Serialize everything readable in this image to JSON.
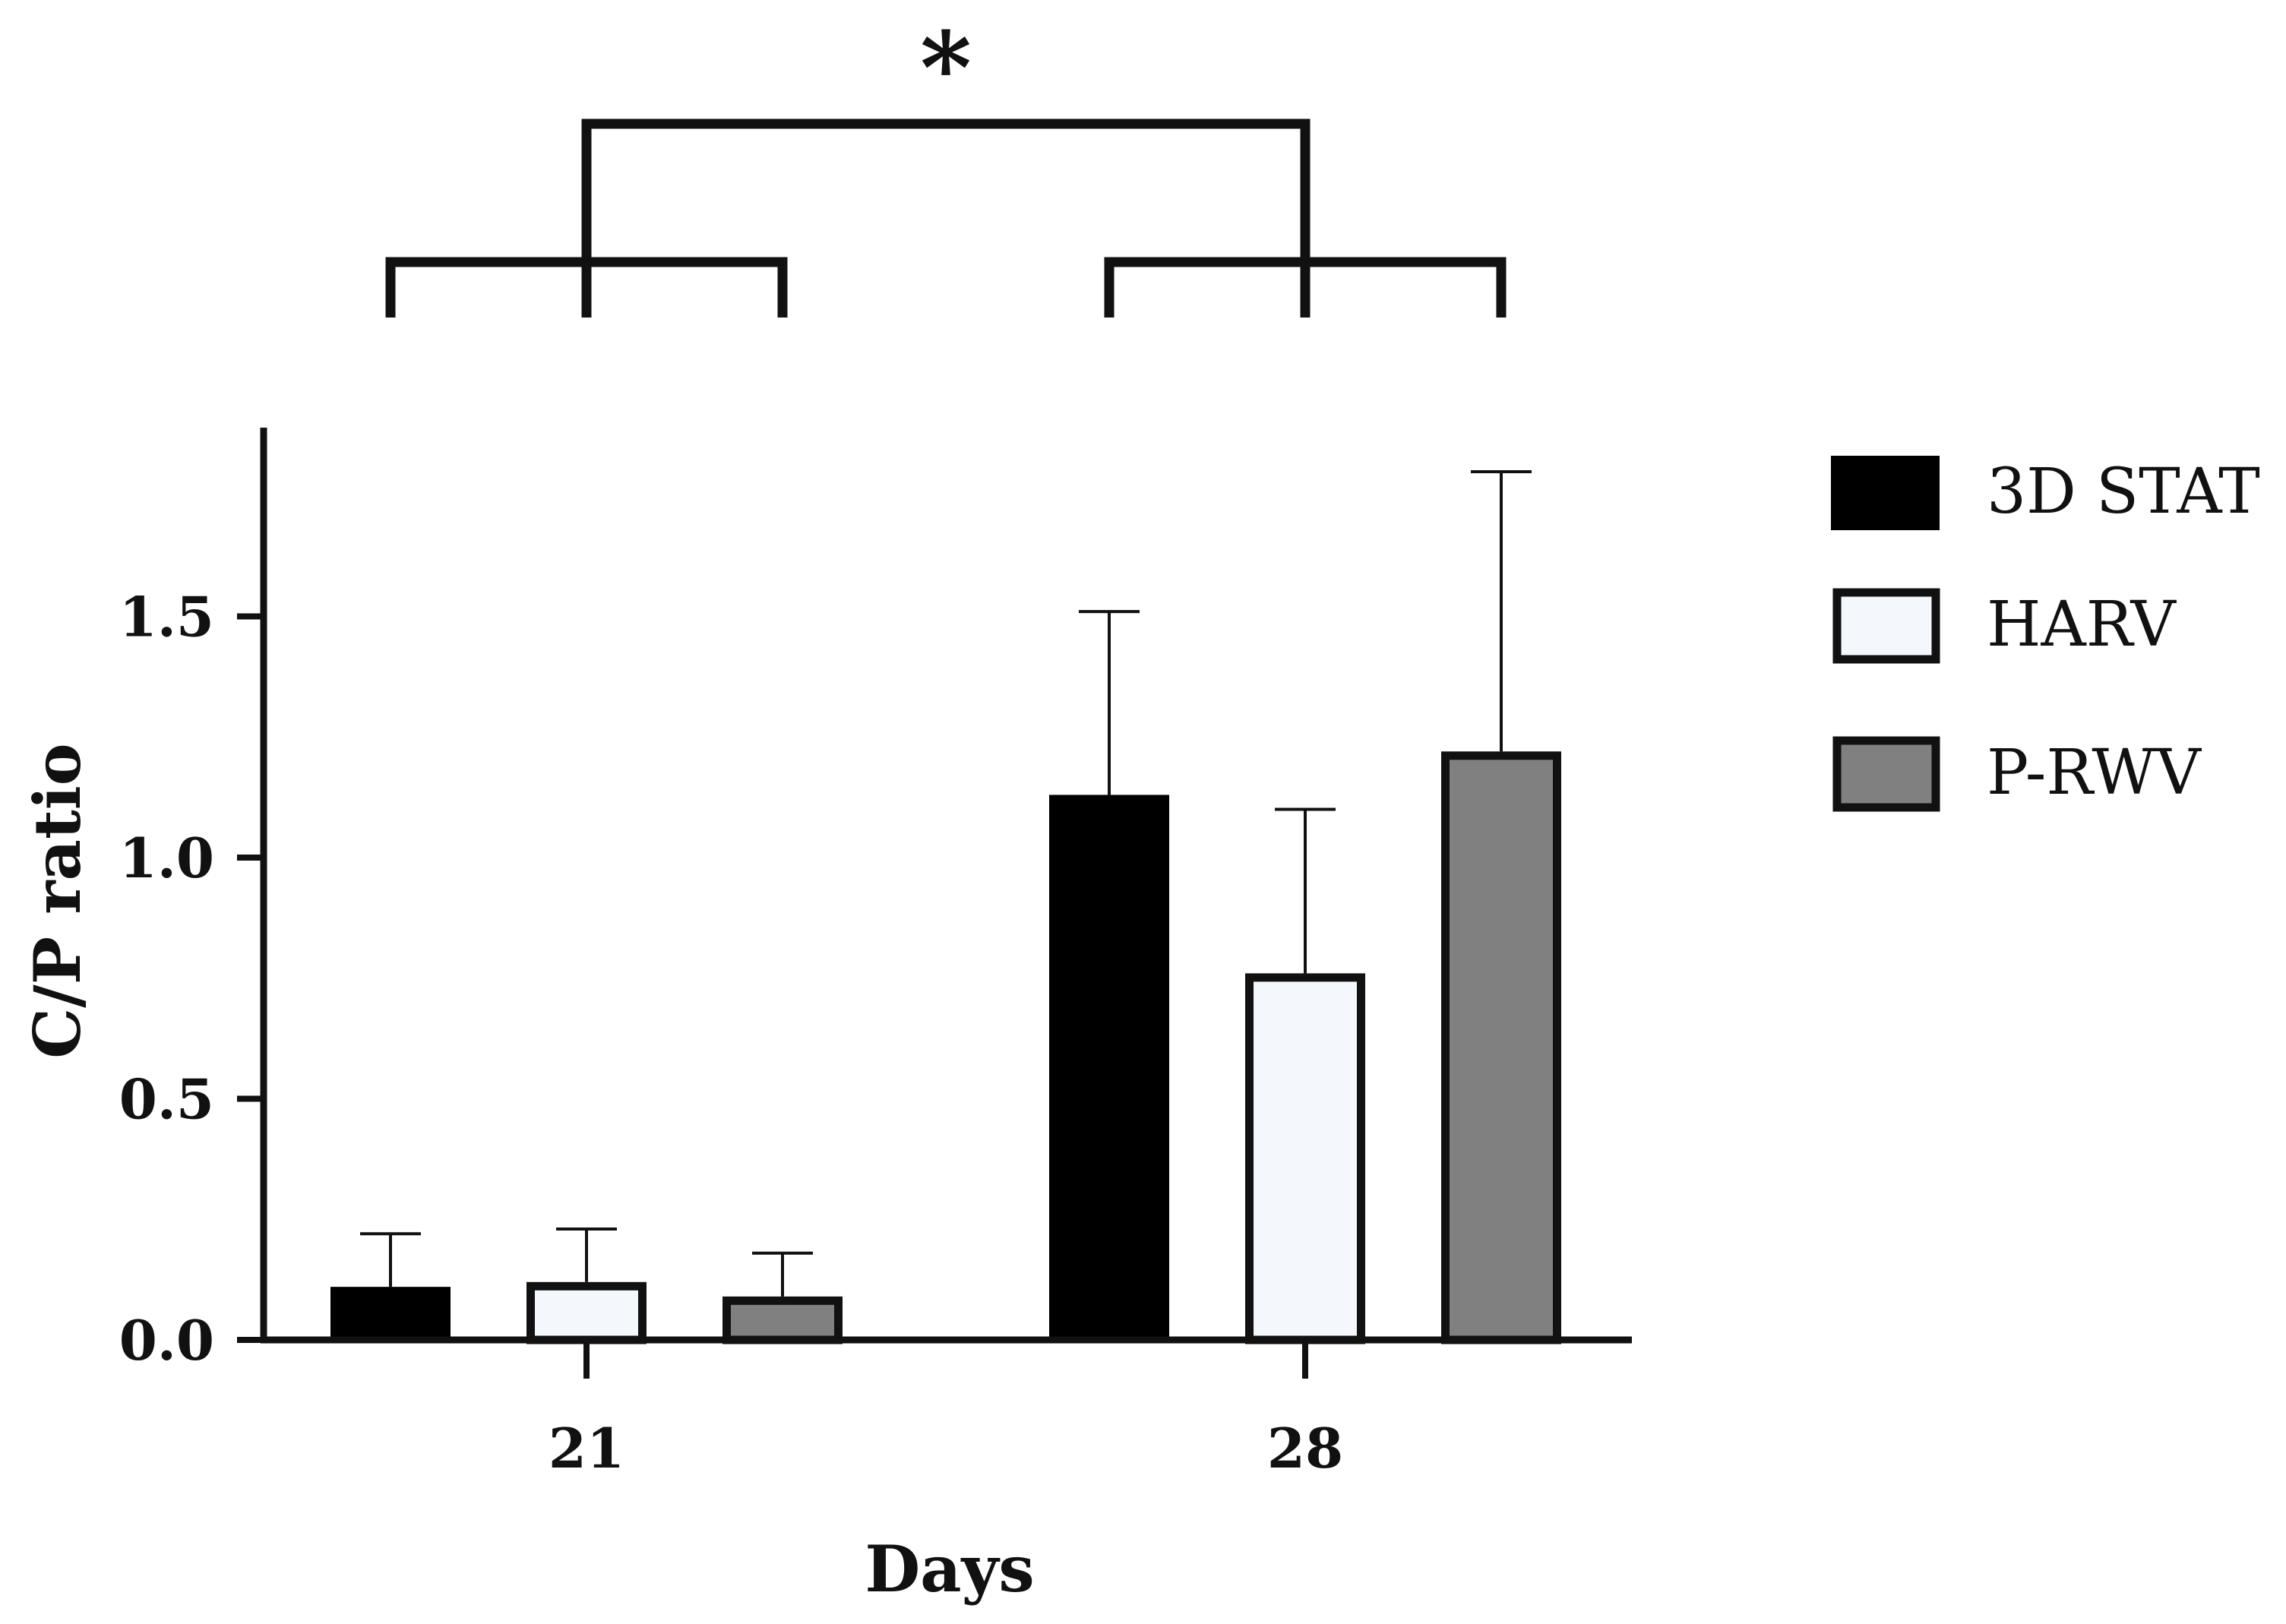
{
  "chart_data": {
    "type": "bar",
    "title": "",
    "xlabel": "Days",
    "ylabel": "C/P ratio",
    "categories": [
      "21",
      "28"
    ],
    "ylim": [
      0,
      1.9
    ],
    "yticks": [
      {
        "value": 0.0,
        "label": "0.0"
      },
      {
        "value": 0.5,
        "label": "0.5"
      },
      {
        "value": 1.0,
        "label": "1.0"
      },
      {
        "value": 1.5,
        "label": "1.5"
      }
    ],
    "series": [
      {
        "name": "3D STAT",
        "values": [
          0.11,
          1.13
        ],
        "error_upper": [
          0.22,
          1.51
        ],
        "fill": "#000000"
      },
      {
        "name": "HARV",
        "values": [
          0.12,
          0.76
        ],
        "error_upper": [
          0.23,
          1.1
        ],
        "fill": "#f4f7fc"
      },
      {
        "name": "P-RWV",
        "values": [
          0.09,
          1.22
        ],
        "error_upper": [
          0.18,
          1.8
        ],
        "fill": "#808080"
      }
    ],
    "significance": {
      "label": "*",
      "between": [
        "21",
        "28"
      ]
    },
    "legend": "right",
    "grid": false
  }
}
